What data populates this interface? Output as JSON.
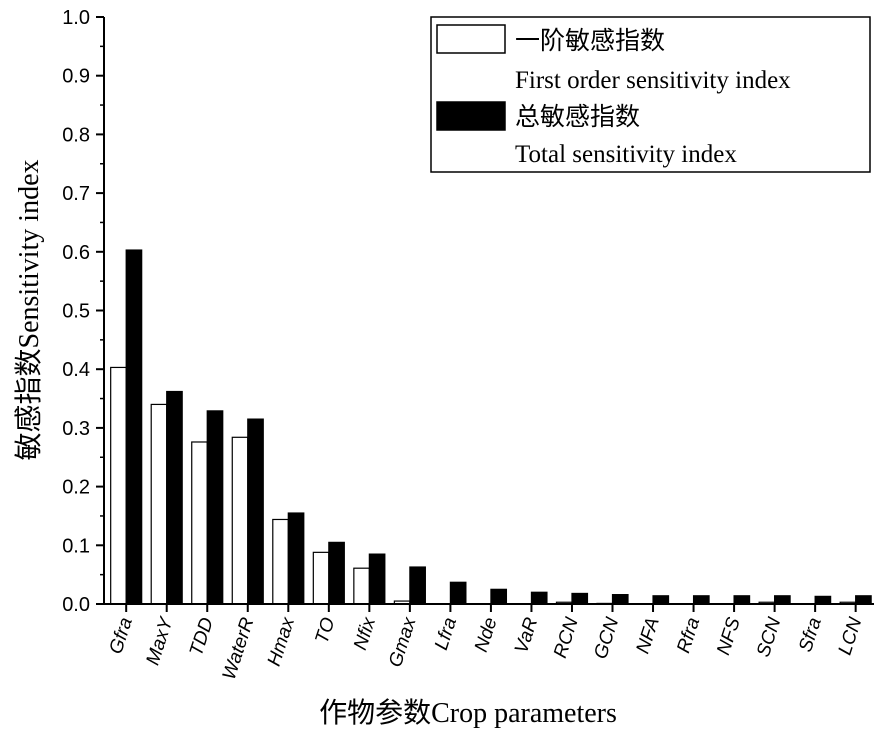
{
  "chart_data": {
    "type": "bar",
    "xlabel": "作物参数Crop parameters",
    "ylabel": "敏感指数Sensitivity index",
    "ylim": [
      0,
      1.0
    ],
    "yticks": [
      "0.0",
      "0.1",
      "0.2",
      "0.3",
      "0.4",
      "0.5",
      "0.6",
      "0.7",
      "0.8",
      "0.9",
      "1.0"
    ],
    "categories": [
      "Gfra",
      "MaxY",
      "TDD",
      "WaterR",
      "Hmax",
      "TO",
      "Nfix",
      "Gmax",
      "Lfra",
      "Nde",
      "VaR",
      "RCN",
      "GCN",
      "NFA",
      "Rfra",
      "NFS",
      "SCN",
      "Sfra",
      "LCN"
    ],
    "series": [
      {
        "name": "一阶敏感指数 First order sensitivity index",
        "legend_cn": "一阶敏感指数",
        "legend_en": "First order sensitivity index",
        "fill": "#ffffff",
        "values": [
          0.403,
          0.34,
          0.276,
          0.284,
          0.144,
          0.088,
          0.061,
          0.005,
          0.0,
          0.0,
          0.0,
          0.003,
          0.001,
          0.0,
          0.0,
          0.0,
          0.003,
          0.0,
          0.003
        ]
      },
      {
        "name": "总敏感指数 Total sensitivity index",
        "legend_cn": "总敏感指数",
        "legend_en": "Total sensitivity index",
        "fill": "#000000",
        "values": [
          0.603,
          0.362,
          0.329,
          0.315,
          0.155,
          0.105,
          0.085,
          0.063,
          0.037,
          0.025,
          0.02,
          0.018,
          0.016,
          0.014,
          0.014,
          0.014,
          0.014,
          0.013,
          0.014
        ]
      }
    ],
    "grid": false,
    "legend_position": "top-right"
  }
}
